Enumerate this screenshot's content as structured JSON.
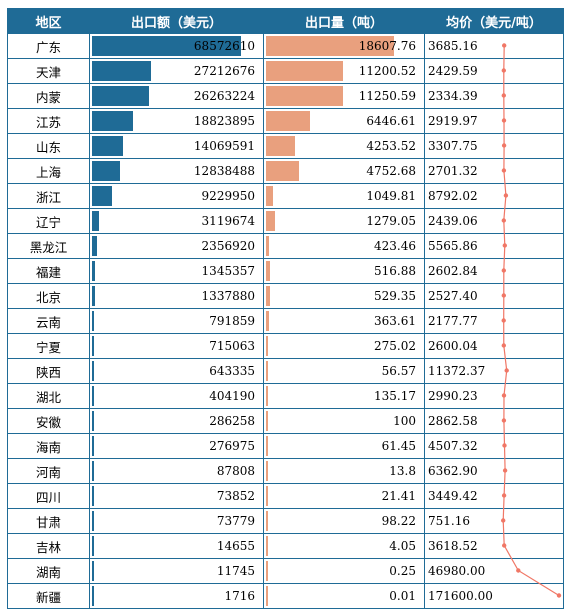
{
  "header": {
    "region": "地区",
    "export_value": "出口额（美元）",
    "export_volume": "出口量（吨）",
    "avg_price": "均价（美元/吨）"
  },
  "colors": {
    "header_bg": "#1f6b96",
    "value_bar": "#1f6b96",
    "volume_bar": "#e9a07e",
    "price_line": "#f07766"
  },
  "chart_data": {
    "type": "table",
    "columns": [
      "地区",
      "出口额（美元）",
      "出口量（吨）",
      "均价（美元/吨）"
    ],
    "rows": [
      {
        "region": "广东",
        "value": "68572610",
        "volume": "18607.76",
        "price": "3685.16"
      },
      {
        "region": "天津",
        "value": "27212676",
        "volume": "11200.52",
        "price": "2429.59"
      },
      {
        "region": "内蒙",
        "value": "26263224",
        "volume": "11250.59",
        "price": "2334.39"
      },
      {
        "region": "江苏",
        "value": "18823895",
        "volume": "6446.61",
        "price": "2919.97"
      },
      {
        "region": "山东",
        "value": "14069591",
        "volume": "4253.52",
        "price": "3307.75"
      },
      {
        "region": "上海",
        "value": "12838488",
        "volume": "4752.68",
        "price": "2701.32"
      },
      {
        "region": "浙江",
        "value": "9229950",
        "volume": "1049.81",
        "price": "8792.02"
      },
      {
        "region": "辽宁",
        "value": "3119674",
        "volume": "1279.05",
        "price": "2439.06"
      },
      {
        "region": "黑龙江",
        "value": "2356920",
        "volume": "423.46",
        "price": "5565.86"
      },
      {
        "region": "福建",
        "value": "1345357",
        "volume": "516.88",
        "price": "2602.84"
      },
      {
        "region": "北京",
        "value": "1337880",
        "volume": "529.35",
        "price": "2527.40"
      },
      {
        "region": "云南",
        "value": "791859",
        "volume": "363.61",
        "price": "2177.77"
      },
      {
        "region": "宁夏",
        "value": "715063",
        "volume": "275.02",
        "price": "2600.04"
      },
      {
        "region": "陕西",
        "value": "643335",
        "volume": "56.57",
        "price": "11372.37"
      },
      {
        "region": "湖北",
        "value": "404190",
        "volume": "135.17",
        "price": "2990.23"
      },
      {
        "region": "安徽",
        "value": "286258",
        "volume": "100",
        "price": "2862.58"
      },
      {
        "region": "海南",
        "value": "276975",
        "volume": "61.45",
        "price": "4507.32"
      },
      {
        "region": "河南",
        "value": "87808",
        "volume": "13.8",
        "price": "6362.90"
      },
      {
        "region": "四川",
        "value": "73852",
        "volume": "21.41",
        "price": "3449.42"
      },
      {
        "region": "甘肃",
        "value": "73779",
        "volume": "98.22",
        "price": "751.16"
      },
      {
        "region": "吉林",
        "value": "14655",
        "volume": "4.05",
        "price": "3618.52"
      },
      {
        "region": "湖南",
        "value": "11745",
        "volume": "0.25",
        "price": "46980.00"
      },
      {
        "region": "新疆",
        "value": "1716",
        "volume": "0.01",
        "price": "171600.00"
      }
    ]
  }
}
